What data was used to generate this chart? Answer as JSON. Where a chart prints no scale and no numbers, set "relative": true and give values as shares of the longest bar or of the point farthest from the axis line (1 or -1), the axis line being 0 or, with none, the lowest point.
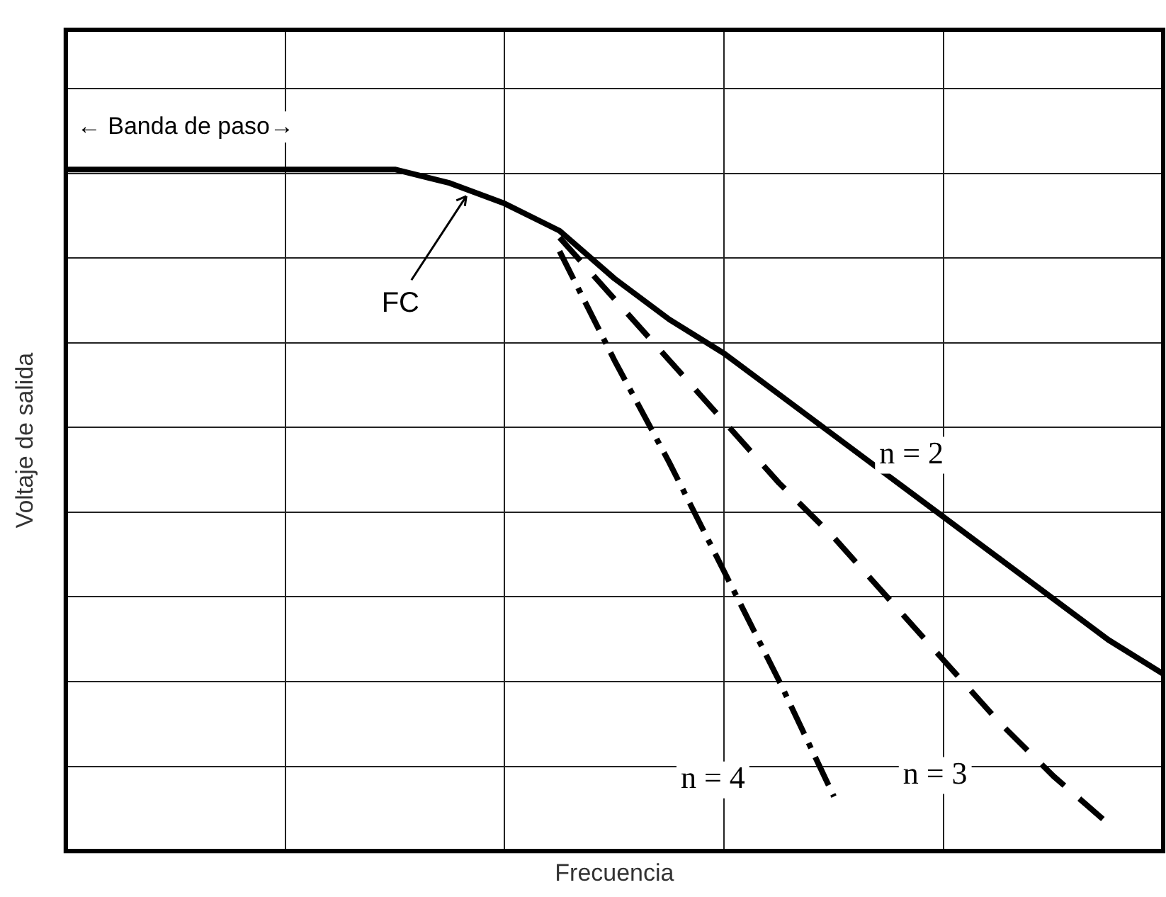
{
  "chart_data": {
    "type": "line",
    "xlabel": "Frecuencia",
    "ylabel": "Voltaje de salida",
    "relative": true,
    "grid": true,
    "legend": false,
    "marker": "none",
    "categories": [
      null,
      null,
      null,
      null,
      null,
      null,
      null,
      null,
      null,
      null,
      null,
      null,
      null,
      null,
      null,
      null,
      null,
      null,
      null,
      null,
      null
    ],
    "annotations": [
      "← Banda de paso→",
      "FC"
    ],
    "series": [
      {
        "name": "n = 2",
        "color": "#000000",
        "line_style": "solid",
        "values": [
          1,
          1,
          1,
          1,
          1,
          1,
          1,
          0.98,
          0.95,
          0.91,
          0.84,
          0.78,
          0.73,
          0.67,
          0.61,
          0.55,
          0.49,
          0.43,
          0.37,
          0.31,
          0.26
        ]
      },
      {
        "name": "n = 3",
        "color": "#000000",
        "line_style": "dashed",
        "values": [
          null,
          null,
          null,
          null,
          null,
          null,
          null,
          null,
          null,
          0.9,
          0.81,
          0.72,
          0.63,
          0.54,
          0.46,
          0.37,
          0.28,
          0.19,
          0.11,
          0.04,
          null
        ]
      },
      {
        "name": "n = 4",
        "color": "#000000",
        "line_style": "dotted",
        "values": [
          null,
          null,
          null,
          null,
          null,
          null,
          null,
          null,
          null,
          0.88,
          0.72,
          0.57,
          0.41,
          0.25,
          0.08,
          null,
          null,
          null,
          null,
          null,
          null
        ]
      }
    ]
  }
}
